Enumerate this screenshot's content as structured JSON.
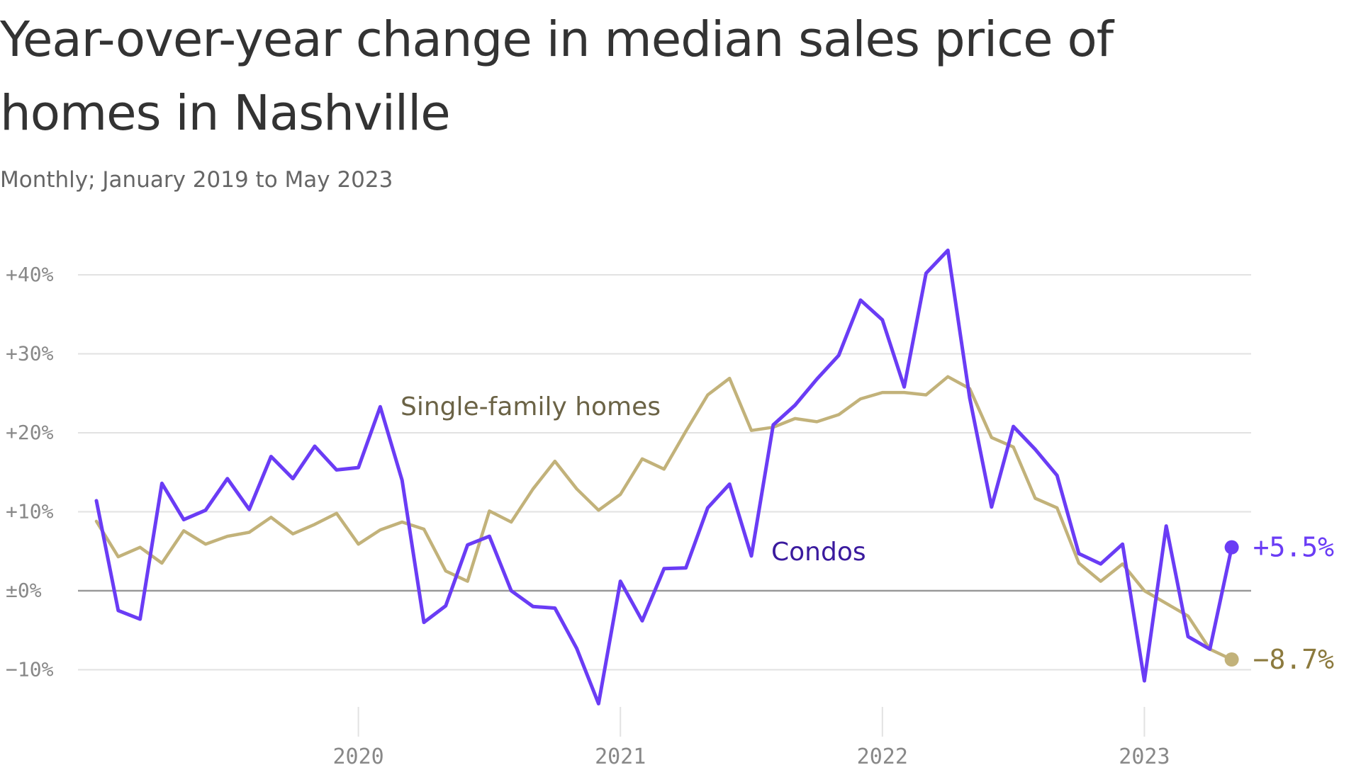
{
  "title": "Year-over-year change in median sales price of homes in Nashville",
  "subtitle": "Monthly; January 2019 to May 2023",
  "chart_data": {
    "type": "line",
    "title": "Year-over-year change in median sales price of homes in Nashville",
    "subtitle": "Monthly; January 2019 to May 2023",
    "x_start": "2019-01",
    "x_end": "2023-05",
    "ylim": [
      -15,
      44
    ],
    "y_ticks": [
      40,
      30,
      20,
      10,
      0,
      -10
    ],
    "y_tick_labels": [
      "+40%",
      "+30%",
      "+20%",
      "+10%",
      "±0%",
      "−10%"
    ],
    "x_ticks": [
      "2020-01",
      "2021-01",
      "2022-01",
      "2023-01"
    ],
    "x_tick_labels": [
      "2020",
      "2021",
      "2022",
      "2023"
    ],
    "grid": true,
    "legend": "direct labels",
    "series": [
      {
        "name": "Single-family homes",
        "color": "#c2b27a",
        "label_color": "#6b6346",
        "end_label": "−8.7%",
        "end_label_color": "#8c7a3e",
        "values": [
          8.8,
          4.3,
          5.5,
          3.5,
          7.6,
          5.9,
          6.9,
          7.4,
          9.3,
          7.2,
          8.4,
          9.8,
          5.9,
          7.7,
          8.7,
          7.8,
          2.5,
          1.2,
          10.1,
          8.7,
          12.9,
          16.4,
          12.9,
          10.2,
          12.2,
          16.7,
          15.4,
          20.2,
          24.8,
          26.9,
          20.3,
          20.7,
          21.8,
          21.4,
          22.3,
          24.3,
          25.1,
          25.1,
          24.8,
          27.1,
          25.6,
          19.4,
          18.2,
          11.7,
          10.5,
          3.5,
          1.2,
          3.4,
          0.0,
          -1.6,
          -3.2,
          -7.4,
          -8.7
        ]
      },
      {
        "name": "Condos",
        "color": "#6a3cf5",
        "label_color": "#3a1a9e",
        "end_label": "+5.5%",
        "end_label_color": "#6a3cf5",
        "values": [
          11.4,
          -2.5,
          -3.6,
          13.6,
          9.0,
          10.2,
          14.2,
          10.3,
          17.0,
          14.2,
          18.3,
          15.3,
          15.6,
          23.3,
          14.0,
          -4.0,
          -1.9,
          5.8,
          6.9,
          0.0,
          -2.0,
          -2.2,
          -7.3,
          -14.3,
          1.2,
          -3.8,
          2.8,
          2.9,
          10.5,
          13.5,
          4.4,
          21.0,
          23.5,
          26.8,
          29.8,
          36.8,
          34.3,
          25.8,
          40.2,
          43.1,
          24.4,
          10.6,
          20.8,
          17.9,
          14.6,
          4.7,
          3.4,
          5.9,
          -11.4,
          8.2,
          -5.8,
          -7.4,
          5.5
        ]
      }
    ]
  }
}
